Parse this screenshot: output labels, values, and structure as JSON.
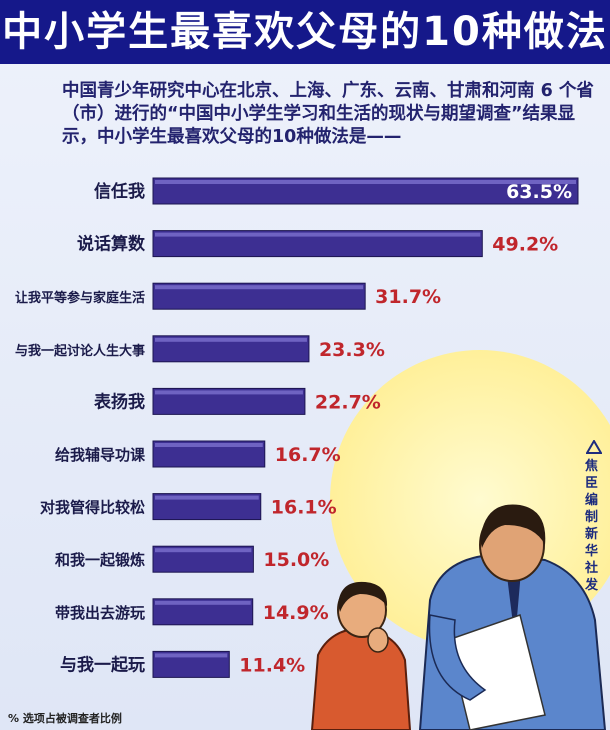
{
  "title": "中小学生最喜欢父母的10种做法",
  "intro": "中国青少年研究中心在北京、上海、广东、云南、甘肃和河南 6 个省（市）进行的“中国中小学生学习和生活的现状与期望调查”结果显示，中小学生最喜欢父母的10种做法是——",
  "footnote": "% 选项占被调查者比例",
  "credit": "焦臣编制新华社发",
  "colors": {
    "bar": "#3d2f92",
    "bar_highlight": "#6f63c2",
    "value_text": "#c0262c",
    "first_value_text": "#ffffff",
    "sun": "#fff6a8"
  },
  "chart_data": {
    "type": "bar",
    "orientation": "horizontal",
    "categories": [
      "信任我",
      "说话算数",
      "让我平等参与家庭生活",
      "与我一起讨论人生大事",
      "表扬我",
      "给我辅导功课",
      "对我管得比较松",
      "和我一起锻炼",
      "带我出去游玩",
      "与我一起玩"
    ],
    "values": [
      63.5,
      49.2,
      31.7,
      23.3,
      22.7,
      16.7,
      16.1,
      15.0,
      14.9,
      11.4
    ],
    "value_labels": [
      "63.5%",
      "49.2%",
      "31.7%",
      "23.3%",
      "22.7%",
      "16.7%",
      "16.1%",
      "15.0%",
      "14.9%",
      "11.4%"
    ],
    "xlim": [
      0,
      63.5
    ],
    "unit": "%"
  }
}
